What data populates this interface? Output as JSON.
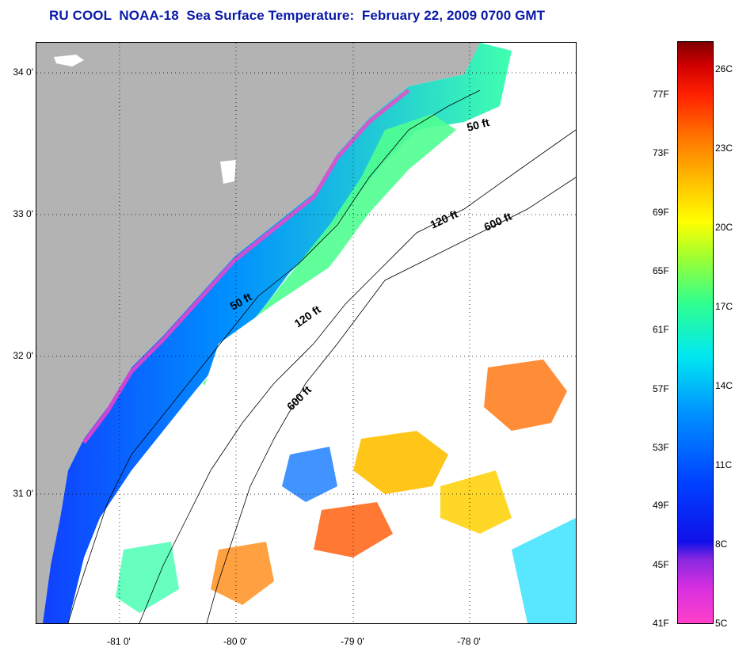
{
  "title": "RU COOL  NOAA-18  Sea Surface Temperature:  February 22, 2009 0700 GMT",
  "map": {
    "latitude_labels": [
      "34 0'",
      "33 0'",
      "32 0'",
      "31 0'"
    ],
    "longitude_labels": [
      "-81 0'",
      "-80 0'",
      "-79 0'",
      "-78 0'"
    ],
    "contour_labels": [
      "50 ft",
      "120 ft",
      "600 ft",
      "50 ft",
      "120 ft",
      "600 ft"
    ],
    "colors": {
      "land": "#b3b3b3",
      "cloud": "#ffffff",
      "coast": "#000000"
    }
  },
  "colorbar": {
    "fahrenheit_labels": [
      "77F",
      "73F",
      "69F",
      "65F",
      "61F",
      "57F",
      "53F",
      "49F",
      "45F",
      "41F"
    ],
    "celsius_labels": [
      "26C",
      "23C",
      "20C",
      "17C",
      "14C",
      "11C",
      "8C",
      "5C"
    ]
  }
}
